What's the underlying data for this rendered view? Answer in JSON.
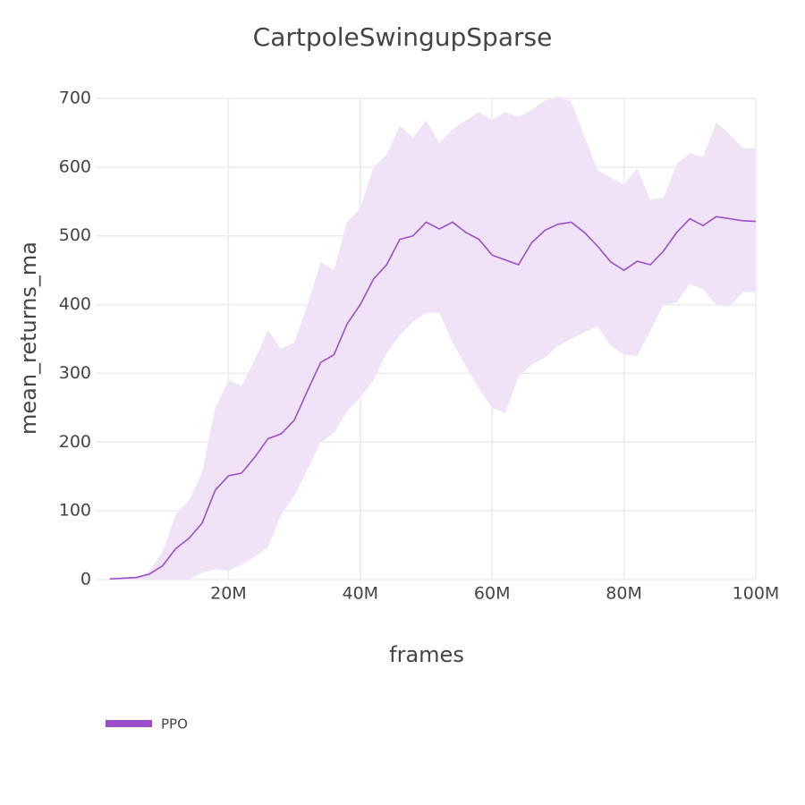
{
  "chart_data": {
    "type": "line",
    "title": "CartpoleSwingupSparse",
    "x_label": "frames",
    "y_label": "mean_returns_ma",
    "x": [
      2000000,
      4000000,
      6000000,
      8000000,
      10000000,
      12000000,
      14000000,
      16000000,
      18000000,
      20000000,
      22000000,
      24000000,
      26000000,
      28000000,
      30000000,
      32000000,
      34000000,
      36000000,
      38000000,
      40000000,
      42000000,
      44000000,
      46000000,
      48000000,
      50000000,
      52000000,
      54000000,
      56000000,
      58000000,
      60000000,
      62000000,
      64000000,
      66000000,
      68000000,
      70000000,
      72000000,
      74000000,
      76000000,
      78000000,
      80000000,
      82000000,
      84000000,
      86000000,
      88000000,
      90000000,
      92000000,
      94000000,
      96000000,
      98000000,
      100000000
    ],
    "series": [
      {
        "name": "PPO",
        "color": "#9b4dca",
        "band_color": "#f0e3f7",
        "values": [
          1,
          2,
          3,
          8,
          20,
          45,
          60,
          82,
          130,
          151,
          155,
          178,
          205,
          212,
          232,
          275,
          316,
          327,
          372,
          400,
          437,
          458,
          495,
          500,
          520,
          510,
          520,
          505,
          495,
          472,
          465,
          458,
          490,
          508,
          517,
          520,
          505,
          485,
          462,
          450,
          463,
          458,
          478,
          505,
          525,
          515,
          528,
          525,
          522,
          521
        ],
        "upper": [
          1,
          2,
          3,
          12,
          40,
          95,
          115,
          155,
          250,
          290,
          282,
          320,
          363,
          335,
          345,
          400,
          462,
          450,
          520,
          540,
          600,
          618,
          660,
          643,
          668,
          635,
          655,
          668,
          680,
          668,
          680,
          673,
          683,
          697,
          703,
          695,
          645,
          595,
          585,
          575,
          598,
          553,
          555,
          605,
          620,
          615,
          665,
          648,
          628,
          627
        ],
        "lower": [
          0,
          0,
          0,
          0,
          0,
          0,
          0,
          10,
          15,
          13,
          22,
          33,
          47,
          95,
          122,
          160,
          200,
          213,
          245,
          265,
          290,
          330,
          355,
          375,
          388,
          388,
          345,
          310,
          278,
          250,
          242,
          295,
          313,
          323,
          340,
          350,
          360,
          368,
          340,
          327,
          325,
          362,
          400,
          403,
          430,
          422,
          400,
          397,
          418,
          418
        ]
      }
    ],
    "xlim": [
      0,
      100000000
    ],
    "xticks": [
      {
        "value": 20000000,
        "label": "20M"
      },
      {
        "value": 40000000,
        "label": "40M"
      },
      {
        "value": 60000000,
        "label": "60M"
      },
      {
        "value": 80000000,
        "label": "80M"
      },
      {
        "value": 100000000,
        "label": "100M"
      }
    ],
    "ylim": [
      0,
      700
    ],
    "yticks": [
      0,
      100,
      200,
      300,
      400,
      500,
      600,
      700
    ],
    "grid": true,
    "legend": "bottom-left"
  }
}
